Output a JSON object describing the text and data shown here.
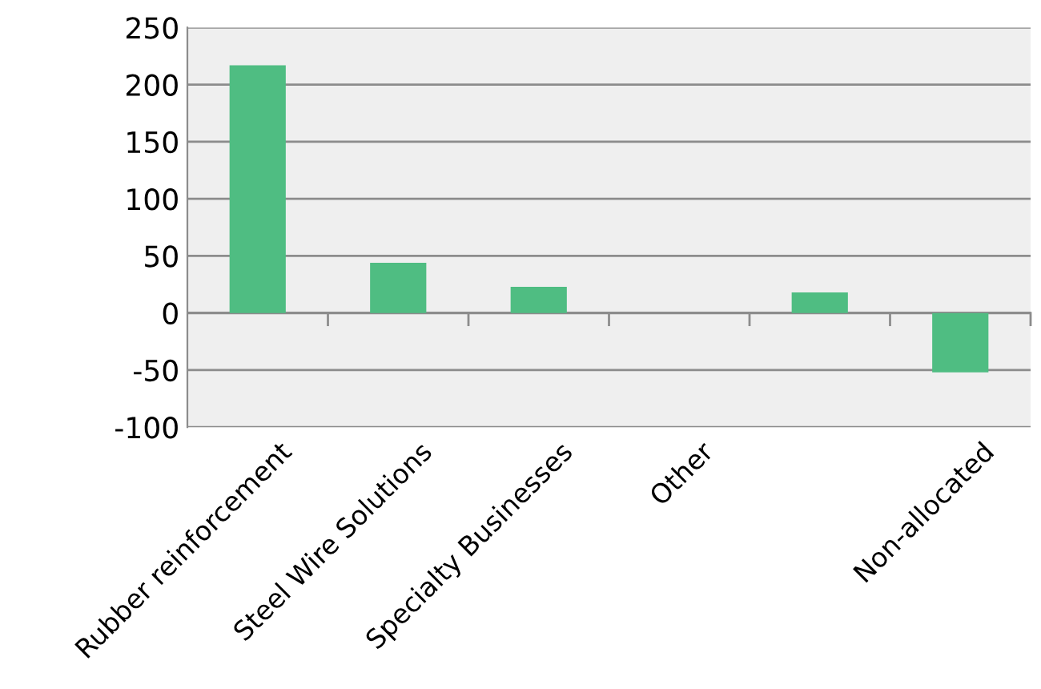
{
  "chart_data": {
    "type": "bar",
    "categories": [
      "Rubber reinforcement",
      "Steel Wire Solutions",
      "Specialty Businesses",
      "Other",
      null,
      "Non-allocated"
    ],
    "values": [
      217,
      44,
      23,
      0,
      18,
      -52
    ],
    "color": "#4fbd82",
    "ylim": [
      -100,
      250
    ],
    "yticks": [
      -100,
      -50,
      0,
      50,
      100,
      150,
      200,
      250
    ],
    "grid": "y",
    "legend": false
  }
}
